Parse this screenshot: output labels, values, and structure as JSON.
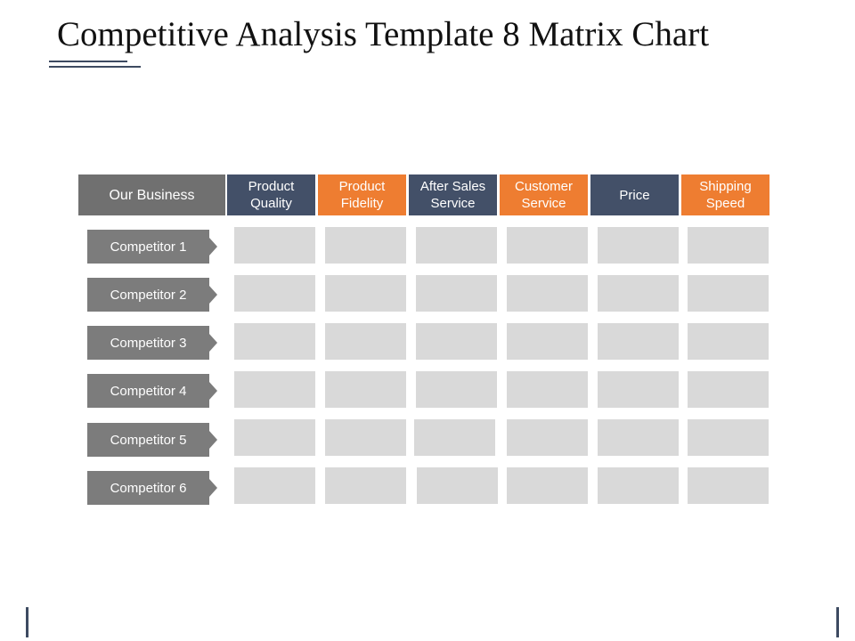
{
  "slide": {
    "title": "Competitive Analysis Template 8 Matrix Chart"
  },
  "matrix": {
    "row_header": "Our Business",
    "columns": [
      {
        "label_line1": "Product",
        "label_line2": "Quality",
        "color": "#435068"
      },
      {
        "label_line1": "Product",
        "label_line2": "Fidelity",
        "color": "#ee7d31"
      },
      {
        "label_line1": "After Sales",
        "label_line2": "Service",
        "color": "#435068"
      },
      {
        "label_line1": "Customer",
        "label_line2": "Service",
        "color": "#ee7d31"
      },
      {
        "label_line1": "Price",
        "label_line2": "",
        "color": "#435068"
      },
      {
        "label_line1": "Shipping",
        "label_line2": "Speed",
        "color": "#ee7d31"
      }
    ],
    "rows": [
      {
        "label": "Competitor 1"
      },
      {
        "label": "Competitor 2"
      },
      {
        "label": "Competitor 3"
      },
      {
        "label": "Competitor 4"
      },
      {
        "label": "Competitor 5"
      },
      {
        "label": "Competitor 6"
      }
    ],
    "cell_color": "#d9d9d9",
    "competitor_color": "#7c7c7c",
    "business_color": "#707070"
  }
}
